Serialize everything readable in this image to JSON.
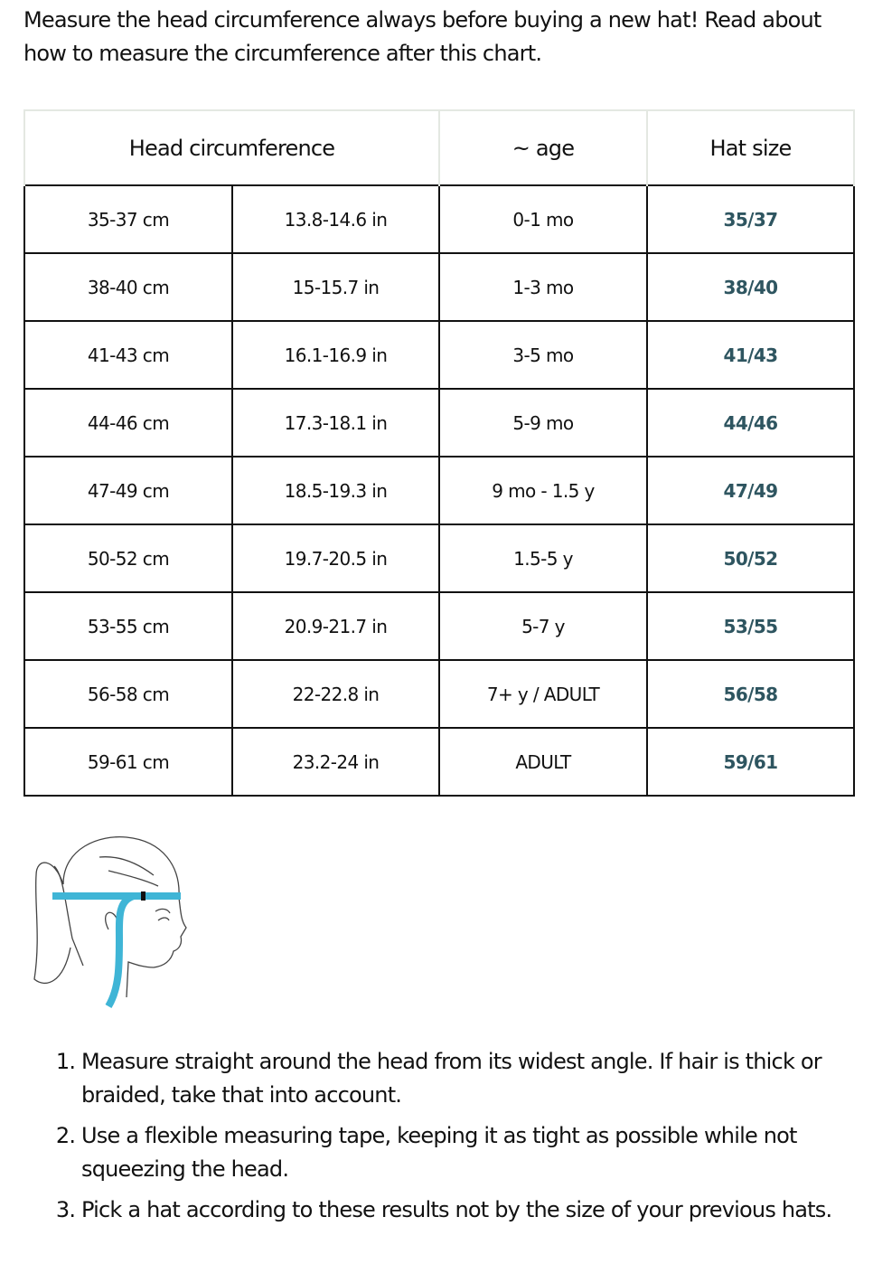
{
  "intro": "Measure the head circumference always before buying a new hat! Read about how to measure the circumference after this chart.",
  "table": {
    "headers": [
      "Head circumference",
      "~ age",
      "Hat size"
    ],
    "rows": [
      [
        "35-37 cm",
        "13.8-14.6 in",
        "0-1 mo",
        "35/37"
      ],
      [
        "38-40 cm",
        "15-15.7 in",
        "1-3 mo",
        "38/40"
      ],
      [
        "41-43 cm",
        "16.1-16.9 in",
        "3-5 mo",
        "41/43"
      ],
      [
        "44-46 cm",
        "17.3-18.1 in",
        "5-9 mo",
        "44/46"
      ],
      [
        "47-49 cm",
        "18.5-19.3 in",
        "9 mo - 1.5 y",
        "47/49"
      ],
      [
        "50-52 cm",
        "19.7-20.5 in",
        "1.5-5 y",
        "50/52"
      ],
      [
        "53-55 cm",
        "20.9-21.7 in",
        "5-7 y",
        "53/55"
      ],
      [
        "56-58 cm",
        "22-22.8 in",
        "7+ y / ADULT",
        "56/58"
      ],
      [
        "59-61 cm",
        "23.2-24 in",
        "ADULT",
        "59/61"
      ]
    ]
  },
  "colors": {
    "hat_size": "#2e5560",
    "tape": "#3fb5d6"
  },
  "instructions": [
    "Measure straight around the head from its widest angle. If hair is thick or braided, take that into account.",
    "Use a flexible measuring tape, keeping it as tight as possible while not squeezing the head.",
    "Pick a hat according to these results not by the size of your previous hats."
  ]
}
